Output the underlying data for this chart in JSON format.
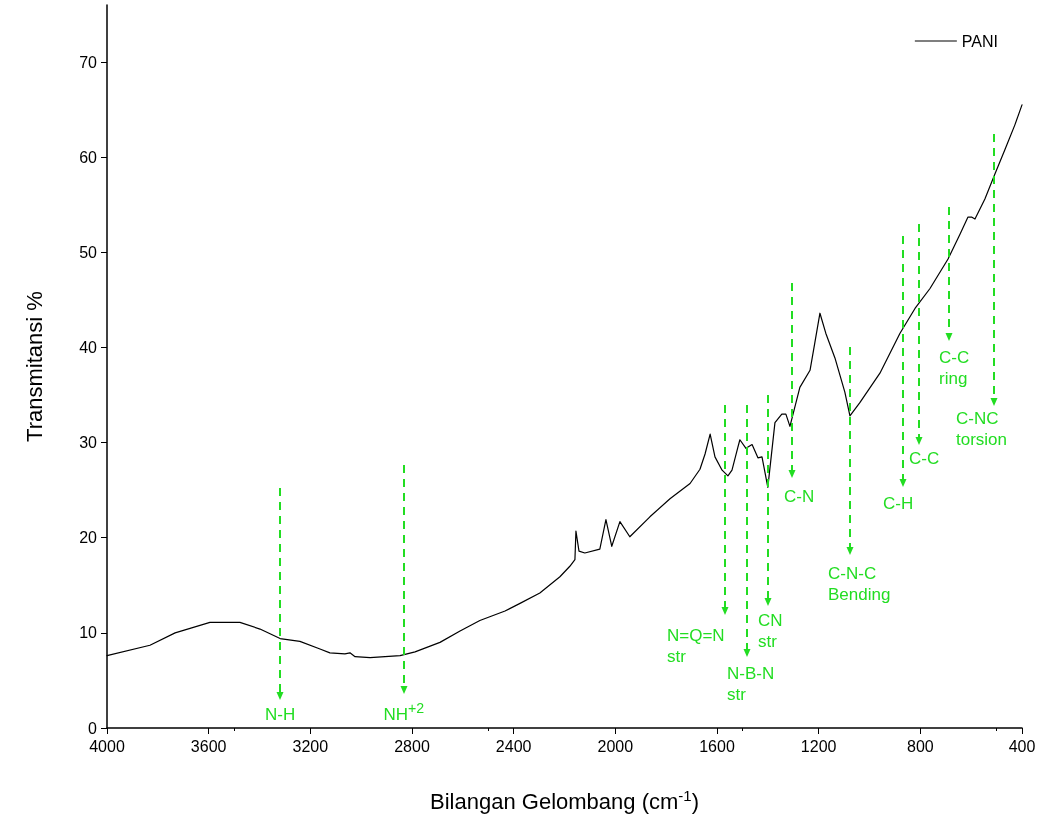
{
  "chart_data": {
    "type": "line",
    "xlabel": "Bilangan Gelombang (cm$^{-1}$)",
    "ylabel": "Transmitansi %",
    "xlim": [
      4000,
      400
    ],
    "xticks": [
      4000,
      3600,
      3200,
      2800,
      2400,
      2000,
      1600,
      1200,
      800,
      400
    ],
    "ylim": [
      0,
      76
    ],
    "yticks": [
      0,
      10,
      20,
      30,
      40,
      50,
      60,
      70
    ],
    "legend": "top right",
    "marker": "none",
    "x": [
      4000,
      3831,
      3732,
      3595,
      3477,
      3398,
      3319,
      3241,
      3162,
      3123,
      3064,
      3044,
      3024,
      2965,
      2847,
      2788,
      2690,
      2611,
      2533,
      2434,
      2375,
      2297,
      2218,
      2179,
      2159,
      2155,
      2143,
      2120,
      2061,
      2037,
      2014,
      1982,
      1943,
      1864,
      1785,
      1706,
      1667,
      1647,
      1627,
      1608,
      1580,
      1557,
      1541,
      1518,
      1510,
      1486,
      1462,
      1439,
      1423,
      1400,
      1372,
      1345,
      1329,
      1313,
      1274,
      1234,
      1215,
      1195,
      1172,
      1136,
      1097,
      1077,
      1038,
      959,
      880,
      821,
      762,
      691,
      644,
      613,
      597,
      585,
      546,
      507,
      467,
      428,
      400
    ],
    "series": [
      {
        "name": "PANI",
        "color": "#000000",
        "values": [
          7.6,
          8.7,
          10.0,
          11.1,
          11.1,
          10.4,
          9.4,
          9.1,
          8.3,
          7.9,
          7.8,
          7.9,
          7.5,
          7.4,
          7.6,
          8.0,
          9.0,
          10.2,
          11.3,
          12.3,
          13.1,
          14.2,
          15.9,
          17.0,
          17.7,
          20.7,
          18.6,
          18.4,
          18.8,
          21.9,
          19.1,
          21.7,
          20.1,
          22.2,
          24.1,
          25.7,
          27.2,
          28.8,
          30.9,
          28.5,
          27.1,
          26.5,
          27.1,
          29.5,
          30.3,
          29.4,
          29.8,
          28.4,
          28.5,
          25.3,
          32.1,
          33.0,
          33.0,
          31.7,
          35.8,
          37.6,
          40.5,
          43.6,
          41.5,
          38.9,
          35.3,
          32.8,
          34.2,
          37.3,
          41.5,
          44.1,
          46.2,
          49.3,
          51.9,
          53.7,
          53.7,
          53.5,
          55.6,
          58.2,
          60.8,
          63.4,
          65.5
        ]
      }
    ],
    "annotations": [
      "N-H",
      "NH$^{+2}$",
      "N=Q=N\nstr",
      "N-B-N\nstr",
      "CN\nstr",
      "C-N",
      "C-N-C\nBending",
      "C-H",
      "C-C",
      "C-C\nring",
      "C-NC\ntorsion"
    ]
  }
}
